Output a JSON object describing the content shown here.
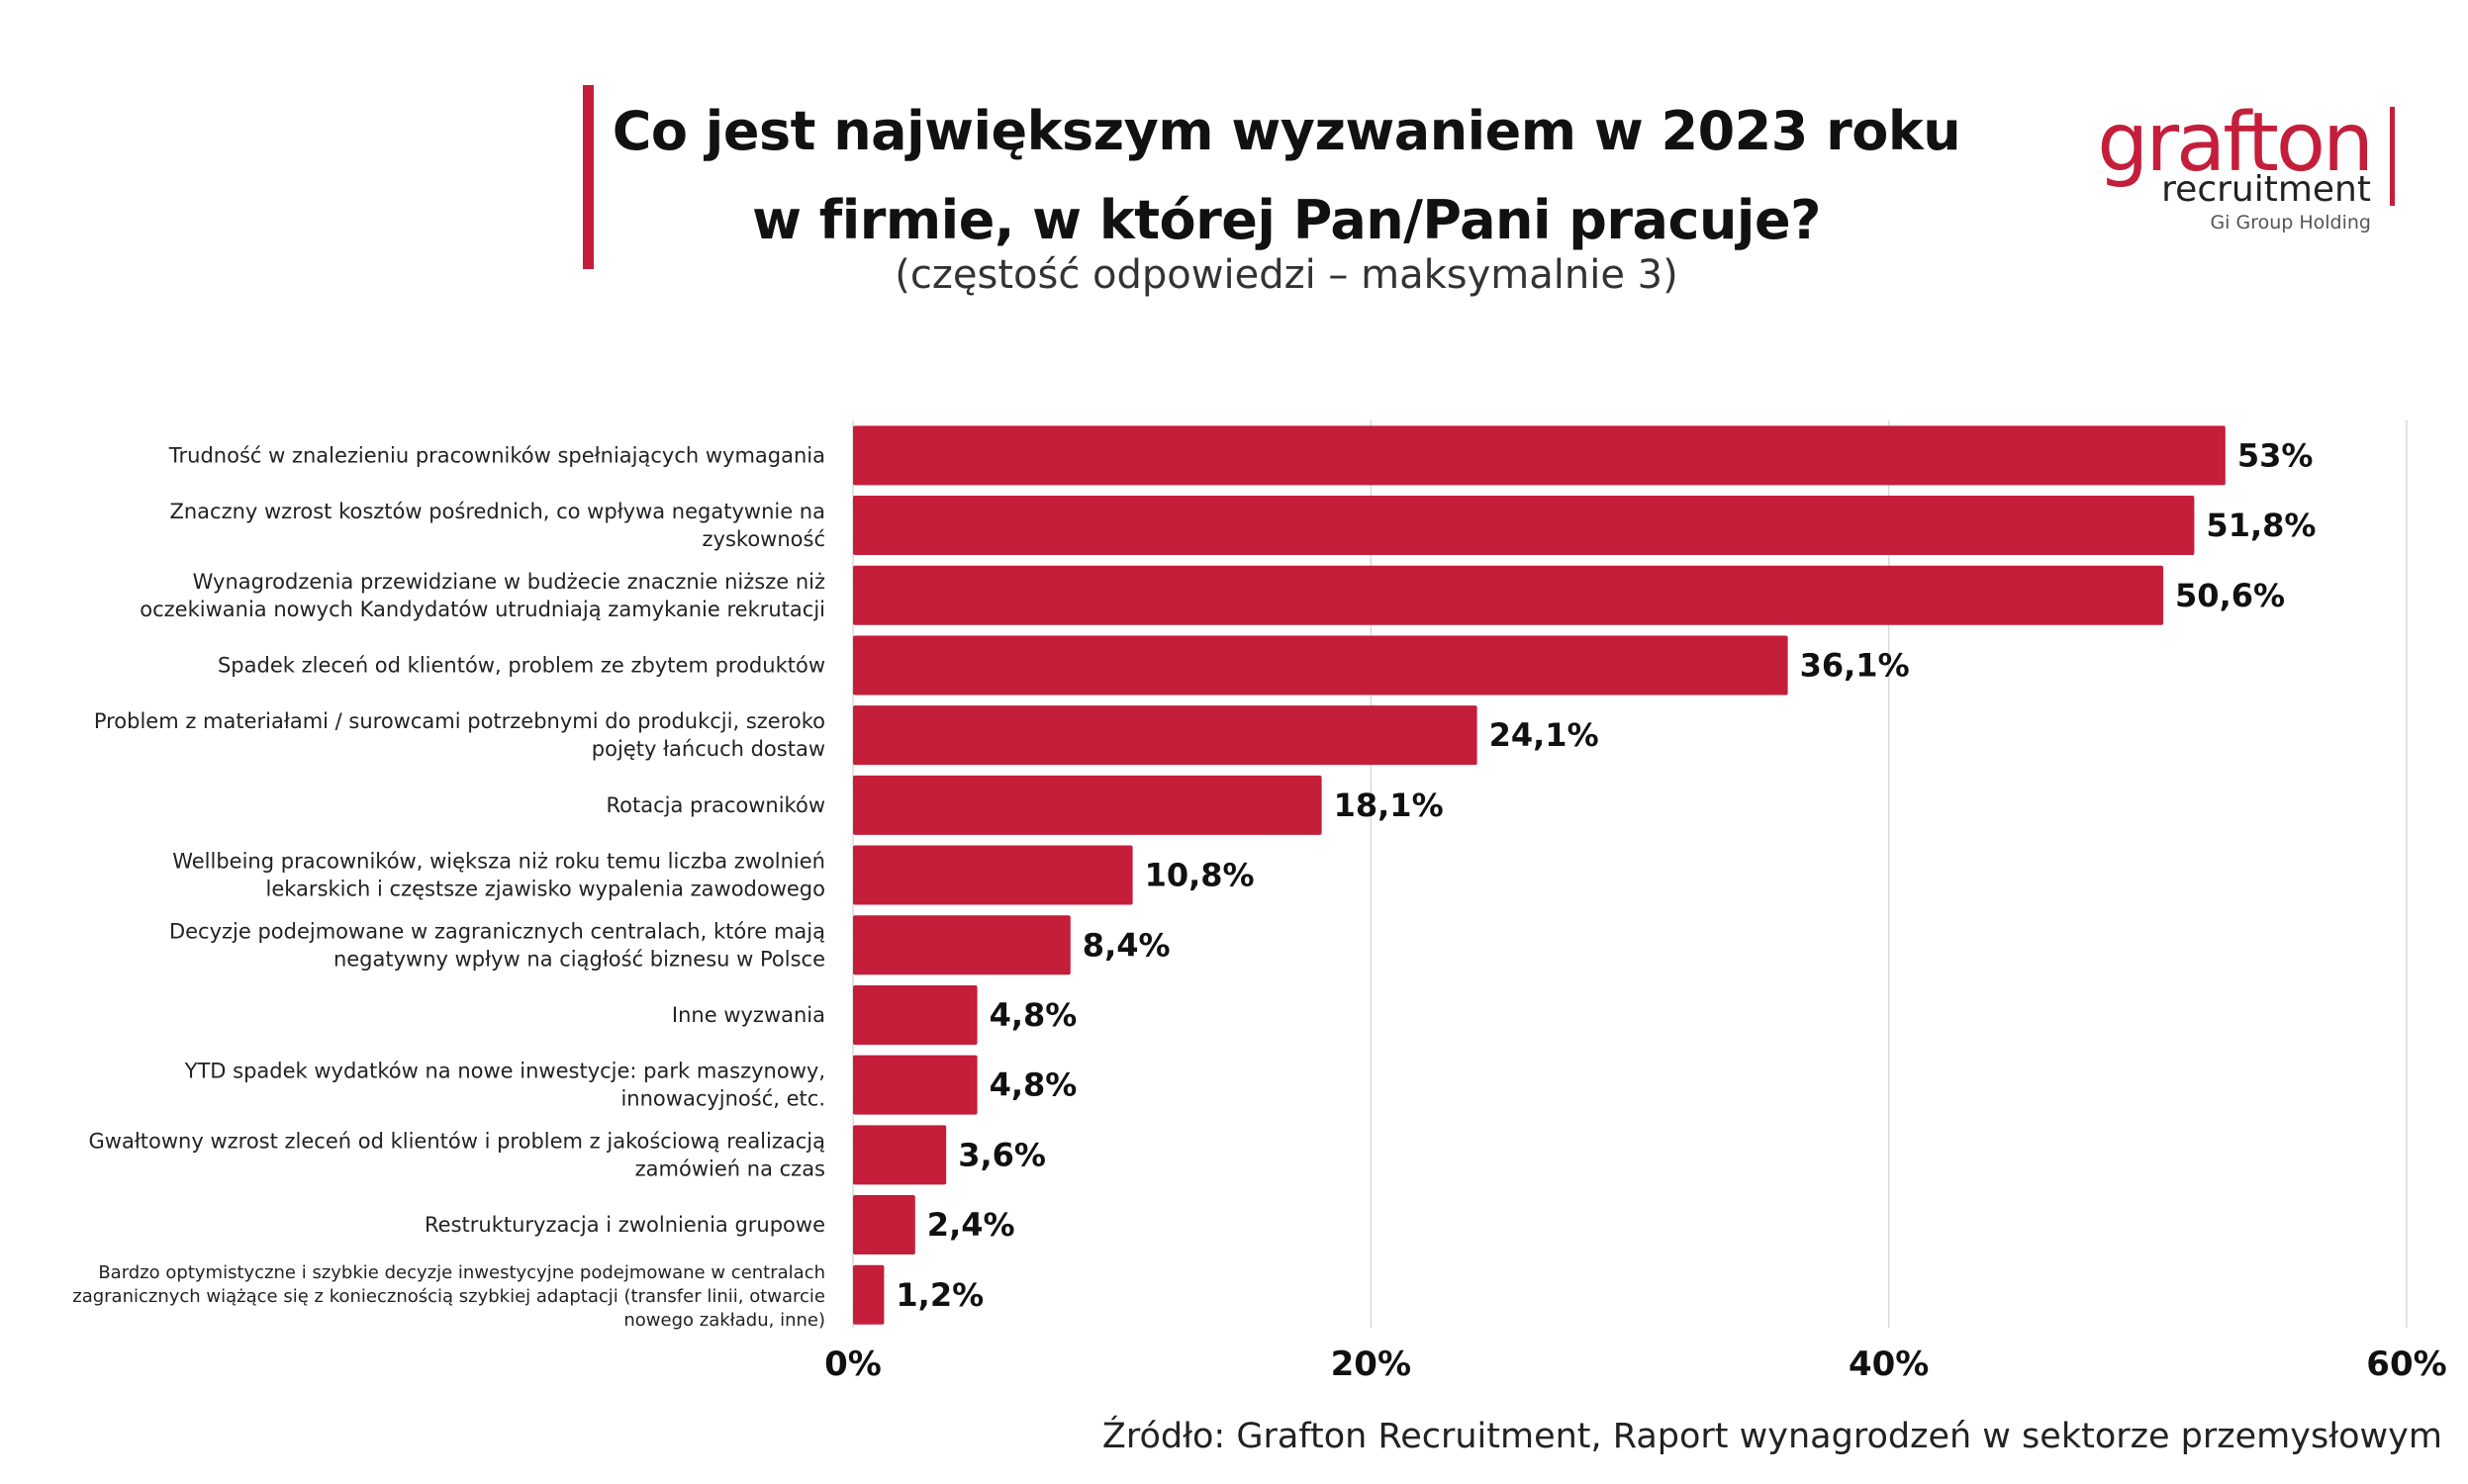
{
  "header": {
    "title_lines": [
      "Co jest największym wyzwaniem w 2023 roku",
      "w firmie, w której Pan/Pani pracuje?"
    ],
    "subtitle": "(częstość odpowiedzi – maksymalnie 3)",
    "accent_color": "#c41e3a"
  },
  "logo": {
    "word": "grafton",
    "sub": "recruitment",
    "group": "Gi Group Holding",
    "color": "#c41e3a"
  },
  "chart_data": {
    "type": "bar",
    "orientation": "horizontal",
    "title": "Co jest największym wyzwaniem w 2023 roku w firmie, w której Pan/Pani pracuje?",
    "subtitle": "(częstość odpowiedzi – maksymalnie 3)",
    "categories": [
      [
        "Trudność w znalezieniu pracowników spełniających wymagania"
      ],
      [
        "Znaczny wzrost kosztów pośrednich, co wpływa negatywnie na",
        "zyskowność"
      ],
      [
        "Wynagrodzenia przewidziane w budżecie znacznie niższe niż",
        "oczekiwania nowych Kandydatów utrudniają zamykanie rekrutacji"
      ],
      [
        "Spadek zleceń od klientów, problem ze zbytem produktów"
      ],
      [
        "Problem z materiałami / surowcami potrzebnymi do produkcji, szeroko",
        "pojęty łańcuch dostaw"
      ],
      [
        "Rotacja pracowników"
      ],
      [
        "Wellbeing pracowników, większa niż roku temu liczba zwolnień",
        "lekarskich i częstsze zjawisko wypalenia zawodowego"
      ],
      [
        "Decyzje podejmowane w zagranicznych centralach, które mają",
        "negatywny wpływ na ciągłość biznesu w Polsce"
      ],
      [
        "Inne wyzwania"
      ],
      [
        "YTD spadek wydatków na nowe inwestycje: park maszynowy,",
        "innowacyjność, etc."
      ],
      [
        "Gwałtowny wzrost zleceń od klientów i problem z jakościową realizacją",
        "zamówień na czas"
      ],
      [
        "Restrukturyzacja i zwolnienia grupowe"
      ],
      [
        "Bardzo optymistyczne i szybkie decyzje inwestycyjne podejmowane w centralach",
        "zagranicznych wiążące się z koniecznością szybkiej adaptacji (transfer linii, otwarcie",
        "nowego zakładu, inne)"
      ]
    ],
    "values": [
      53,
      51.8,
      50.6,
      36.1,
      24.1,
      18.1,
      10.8,
      8.4,
      4.8,
      4.8,
      3.6,
      2.4,
      1.2
    ],
    "value_labels": [
      "53%",
      "51,8%",
      "50,6%",
      "36,1%",
      "24,1%",
      "18,1%",
      "10,8%",
      "8,4%",
      "4,8%",
      "4,8%",
      "3,6%",
      "2,4%",
      "1,2%"
    ],
    "xlim": [
      0,
      60
    ],
    "xticks": [
      0,
      20,
      40,
      60
    ],
    "xtick_labels": [
      "0%",
      "20%",
      "40%",
      "60%"
    ],
    "grid": "vertical",
    "legend": "none",
    "bar_color": "#c41e3a"
  },
  "footer": {
    "source": "Źródło: Grafton Recruitment, Raport wynagrodzeń w sektorze przemysłowym"
  }
}
